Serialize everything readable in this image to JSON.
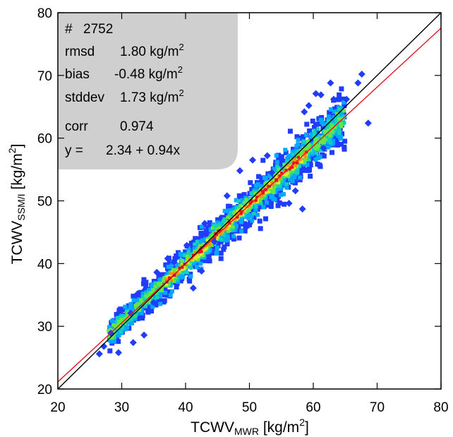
{
  "chart_data": {
    "type": "scatter",
    "subtype": "density-scatter",
    "xlabel": {
      "main": "TCWV",
      "sub": "MWR",
      "unit_pre": " [kg/m",
      "unit_sup": "2",
      "unit_post": "]"
    },
    "ylabel": {
      "main": "TCWV",
      "sub": "SSM/I",
      "unit_pre": " [kg/m",
      "unit_sup": "2",
      "unit_post": "]"
    },
    "xlim": [
      20,
      80
    ],
    "ylim": [
      20,
      80
    ],
    "xticks": [
      "20",
      "30",
      "40",
      "50",
      "60",
      "70",
      "80"
    ],
    "yticks": [
      "20",
      "30",
      "40",
      "50",
      "60",
      "70",
      "80"
    ],
    "grid": false,
    "stats": {
      "count": {
        "label": "#",
        "value": "2752"
      },
      "rmsd": {
        "label": "rmsd",
        "value": "1.80 kg/m",
        "sup": "2"
      },
      "bias": {
        "label": "bias",
        "value": "-0.48 kg/m",
        "sup": "2"
      },
      "stddev": {
        "label": "stddev",
        "value": "1.73 kg/m",
        "sup": "2"
      },
      "corr": {
        "label": "corr",
        "value": "0.974"
      },
      "fit": {
        "label": "y =",
        "value": "2.34 +  0.94x"
      }
    },
    "lines": [
      {
        "kind": "one-to-one",
        "intercept": 0,
        "slope": 1,
        "color": "#000000"
      },
      {
        "kind": "regression",
        "intercept": 2.34,
        "slope": 0.94,
        "color": "#e8141e"
      }
    ],
    "density_colors": [
      "#1f3cff",
      "#00a8ff",
      "#14d2b4",
      "#64e646",
      "#e6e628",
      "#ff8c14",
      "#e6141e"
    ],
    "outlier_points": [
      [
        26.5,
        25.6
      ],
      [
        27.2,
        26.8
      ],
      [
        28.3,
        28.9
      ],
      [
        29.5,
        25.8
      ],
      [
        31.4,
        32.1
      ],
      [
        31.8,
        27.4
      ],
      [
        32.5,
        35.2
      ],
      [
        33.5,
        28.6
      ],
      [
        35.5,
        38.6
      ],
      [
        37.2,
        40.8
      ],
      [
        38.2,
        40.2
      ],
      [
        40.2,
        42.9
      ],
      [
        41.2,
        36.1
      ],
      [
        43.0,
        46.4
      ],
      [
        42.5,
        38.8
      ],
      [
        46.5,
        50.8
      ],
      [
        48.5,
        54.8
      ],
      [
        50.5,
        56.5
      ],
      [
        52.8,
        57.2
      ],
      [
        53.5,
        54.5
      ],
      [
        56.2,
        49.6
      ],
      [
        57.2,
        51.6
      ],
      [
        58.3,
        48.7
      ],
      [
        58.6,
        64.2
      ],
      [
        59.3,
        65.2
      ],
      [
        60.4,
        67.1
      ],
      [
        61.2,
        66.9
      ],
      [
        62.7,
        68.8
      ],
      [
        63.2,
        66.2
      ],
      [
        65.2,
        66.2
      ],
      [
        67.0,
        68.8
      ],
      [
        67.6,
        70.2
      ],
      [
        68.6,
        62.4
      ],
      [
        61.6,
        58.4
      ],
      [
        44.5,
        43.5
      ],
      [
        35.0,
        33.8
      ]
    ]
  }
}
